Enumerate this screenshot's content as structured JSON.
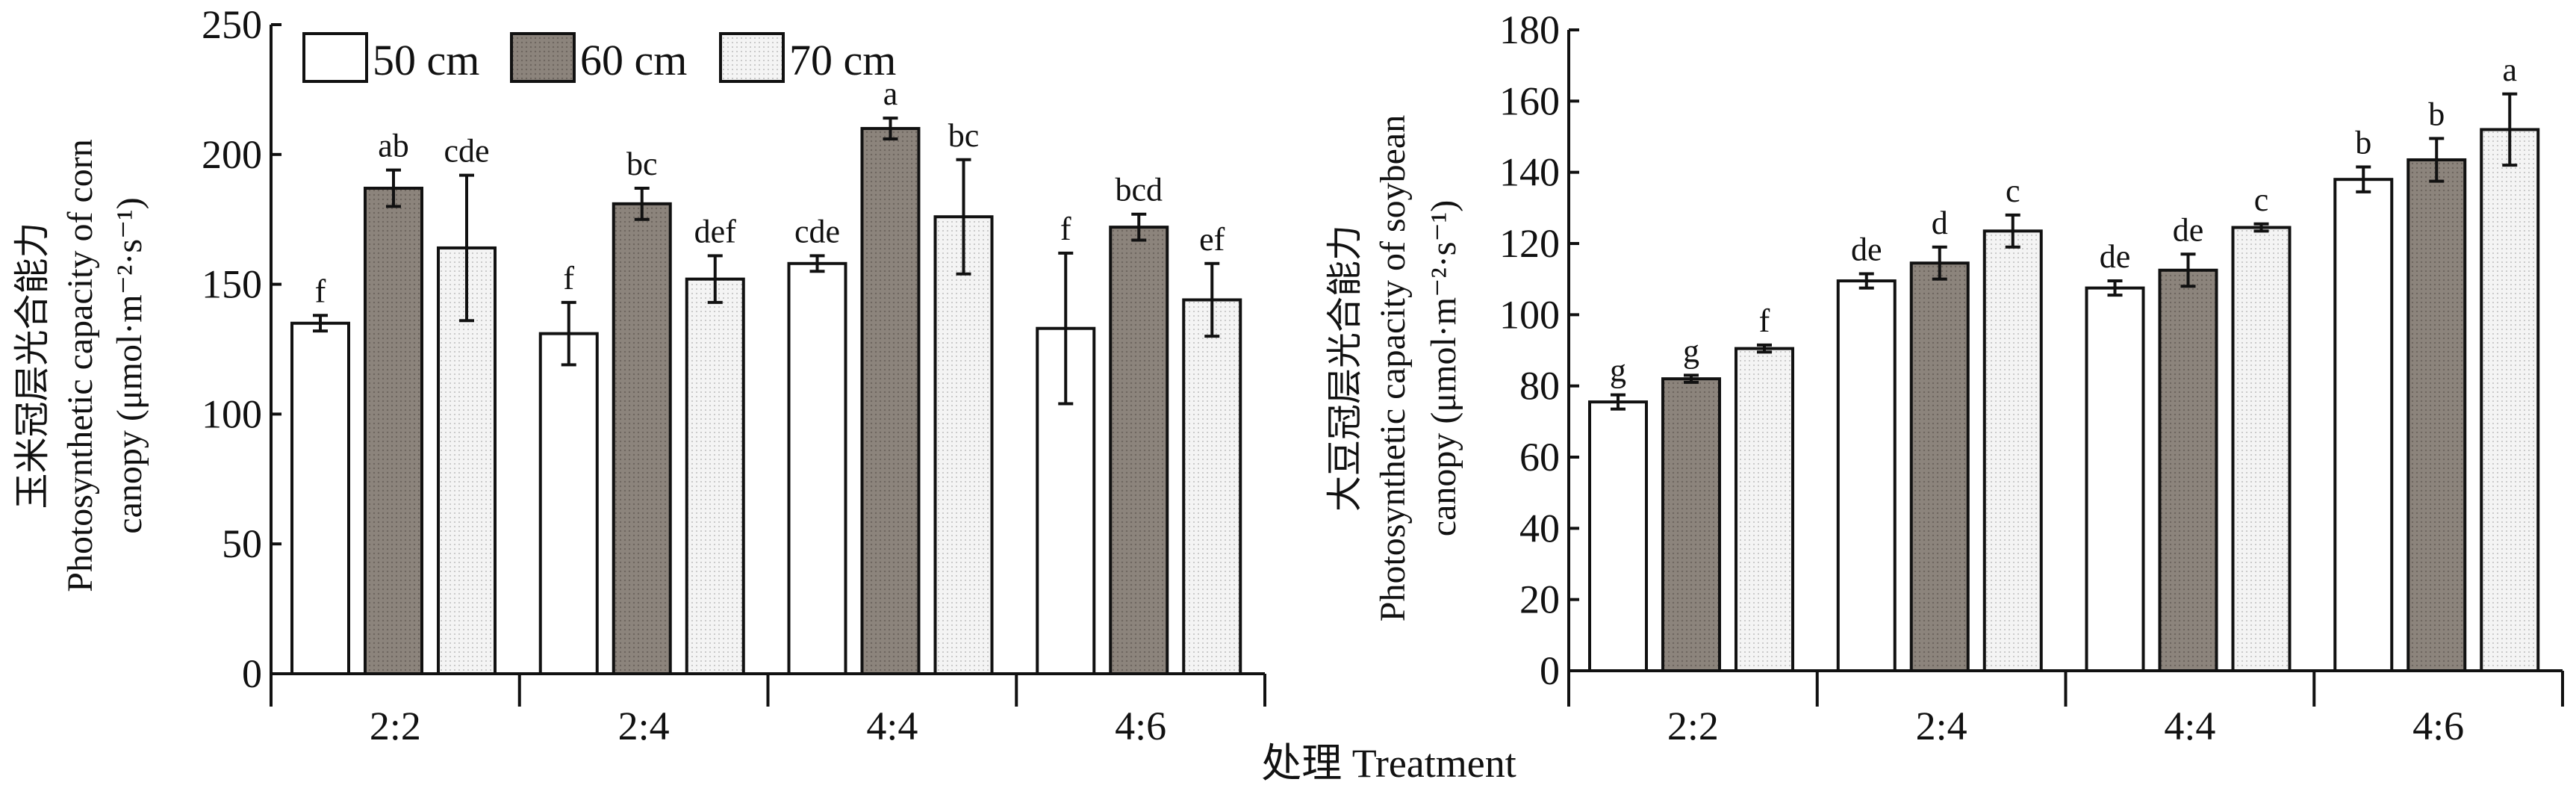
{
  "colors": {
    "s50": "#ffffff",
    "s60": "#8c847c",
    "s70": "#ececec",
    "axis": "#111111"
  },
  "legend": [
    "50 cm",
    "60 cm",
    "70 cm"
  ],
  "xlabel": "处理 Treatment",
  "chart_data": [
    {
      "type": "bar",
      "title": "",
      "ylabel_lines": [
        "玉米冠层光合能力",
        "Photosynthetic capacity of corn",
        "canopy (μmol·m⁻²·s⁻¹)"
      ],
      "categories": [
        "2:2",
        "2:4",
        "4:4",
        "4:6"
      ],
      "ylim": [
        0,
        250
      ],
      "yticks": [
        0,
        50,
        100,
        150,
        200,
        250
      ],
      "series": [
        {
          "name": "50 cm",
          "values": [
            135,
            131,
            158,
            133
          ],
          "errors": [
            3,
            12,
            3,
            29
          ],
          "letters": [
            "f",
            "f",
            "cde",
            "f"
          ]
        },
        {
          "name": "60 cm",
          "values": [
            187,
            181,
            210,
            172
          ],
          "errors": [
            7,
            6,
            4,
            5
          ],
          "letters": [
            "ab",
            "bc",
            "a",
            "bcd"
          ]
        },
        {
          "name": "70 cm",
          "values": [
            164,
            152,
            176,
            144
          ],
          "errors": [
            28,
            9,
            22,
            14
          ],
          "letters": [
            "cde",
            "def",
            "bc",
            "ef"
          ]
        }
      ]
    },
    {
      "type": "bar",
      "title": "",
      "ylabel_lines": [
        "大豆冠层光合能力",
        "Photosynthetic capacity of soybean",
        "canopy (μmol·m⁻²·s⁻¹)"
      ],
      "categories": [
        "2:2",
        "2:4",
        "4:4",
        "4:6"
      ],
      "ylim": [
        0,
        180
      ],
      "yticks": [
        0,
        20,
        40,
        60,
        80,
        100,
        120,
        140,
        160,
        180
      ],
      "series": [
        {
          "name": "50 cm",
          "values": [
            75.5,
            109.5,
            107.5,
            138
          ],
          "errors": [
            2,
            2,
            2,
            3.5
          ],
          "letters": [
            "g",
            "de",
            "de",
            "b"
          ]
        },
        {
          "name": "60 cm",
          "values": [
            82,
            114.5,
            112.5,
            143.5
          ],
          "errors": [
            1,
            4.5,
            4.5,
            6
          ],
          "letters": [
            "g",
            "d",
            "de",
            "b"
          ]
        },
        {
          "name": "70 cm",
          "values": [
            90.5,
            123.5,
            124.5,
            152
          ],
          "errors": [
            1,
            4.5,
            1,
            10
          ],
          "letters": [
            "f",
            "c",
            "c",
            "a"
          ]
        }
      ]
    }
  ]
}
